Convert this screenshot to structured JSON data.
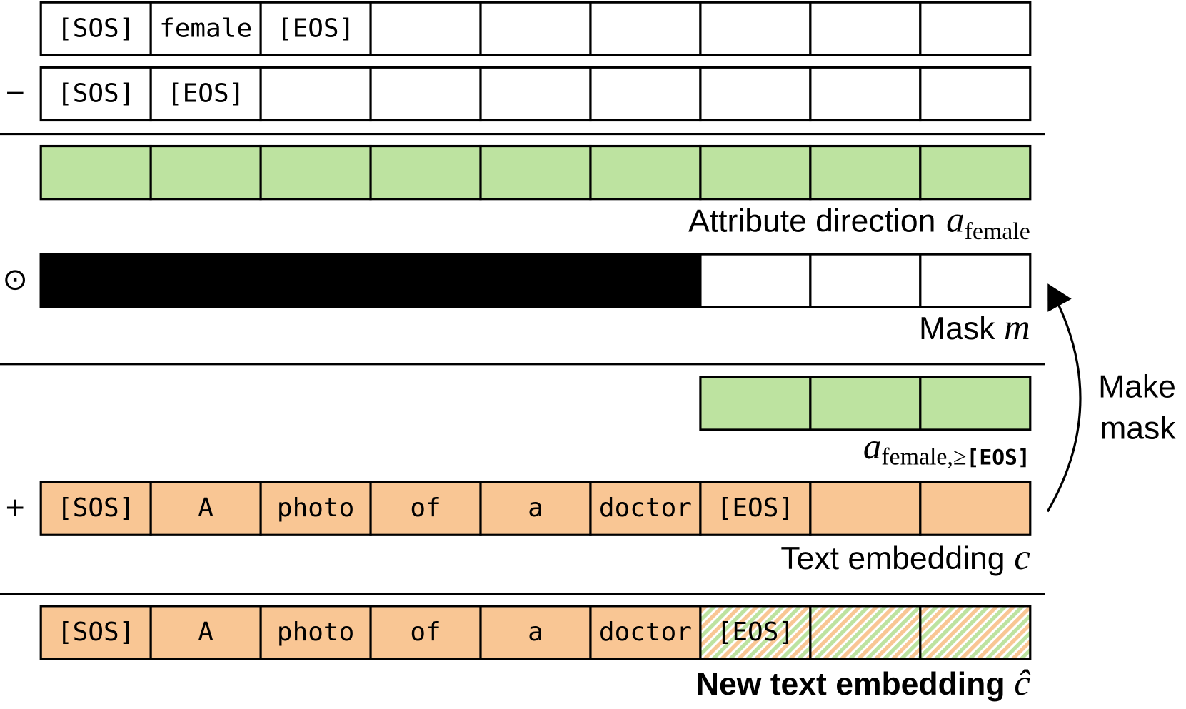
{
  "tokens": {
    "attribute": [
      "[SOS]",
      "female",
      "[EOS]"
    ],
    "null": [
      "[SOS]",
      "[EOS]"
    ],
    "prompt": [
      "[SOS]",
      "A",
      "photo",
      "of",
      "a",
      "doctor",
      "[EOS]"
    ]
  },
  "operators": {
    "minus": "−",
    "hadamard": "⊙",
    "plus": "+"
  },
  "labels": {
    "attribute_direction": {
      "text": "Attribute direction",
      "symbol": "a",
      "subscript": "female"
    },
    "mask": {
      "text": "Mask",
      "symbol": "m"
    },
    "masked_direction": {
      "symbol": "a",
      "subscript": "female,≥",
      "token": "[EOS]"
    },
    "text_embedding": {
      "text": "Text embedding",
      "symbol": "c"
    },
    "new_text_embedding": {
      "text": "New text embedding",
      "symbol": "ĉ"
    }
  },
  "arrow_label": [
    "Make",
    "mask"
  ]
}
